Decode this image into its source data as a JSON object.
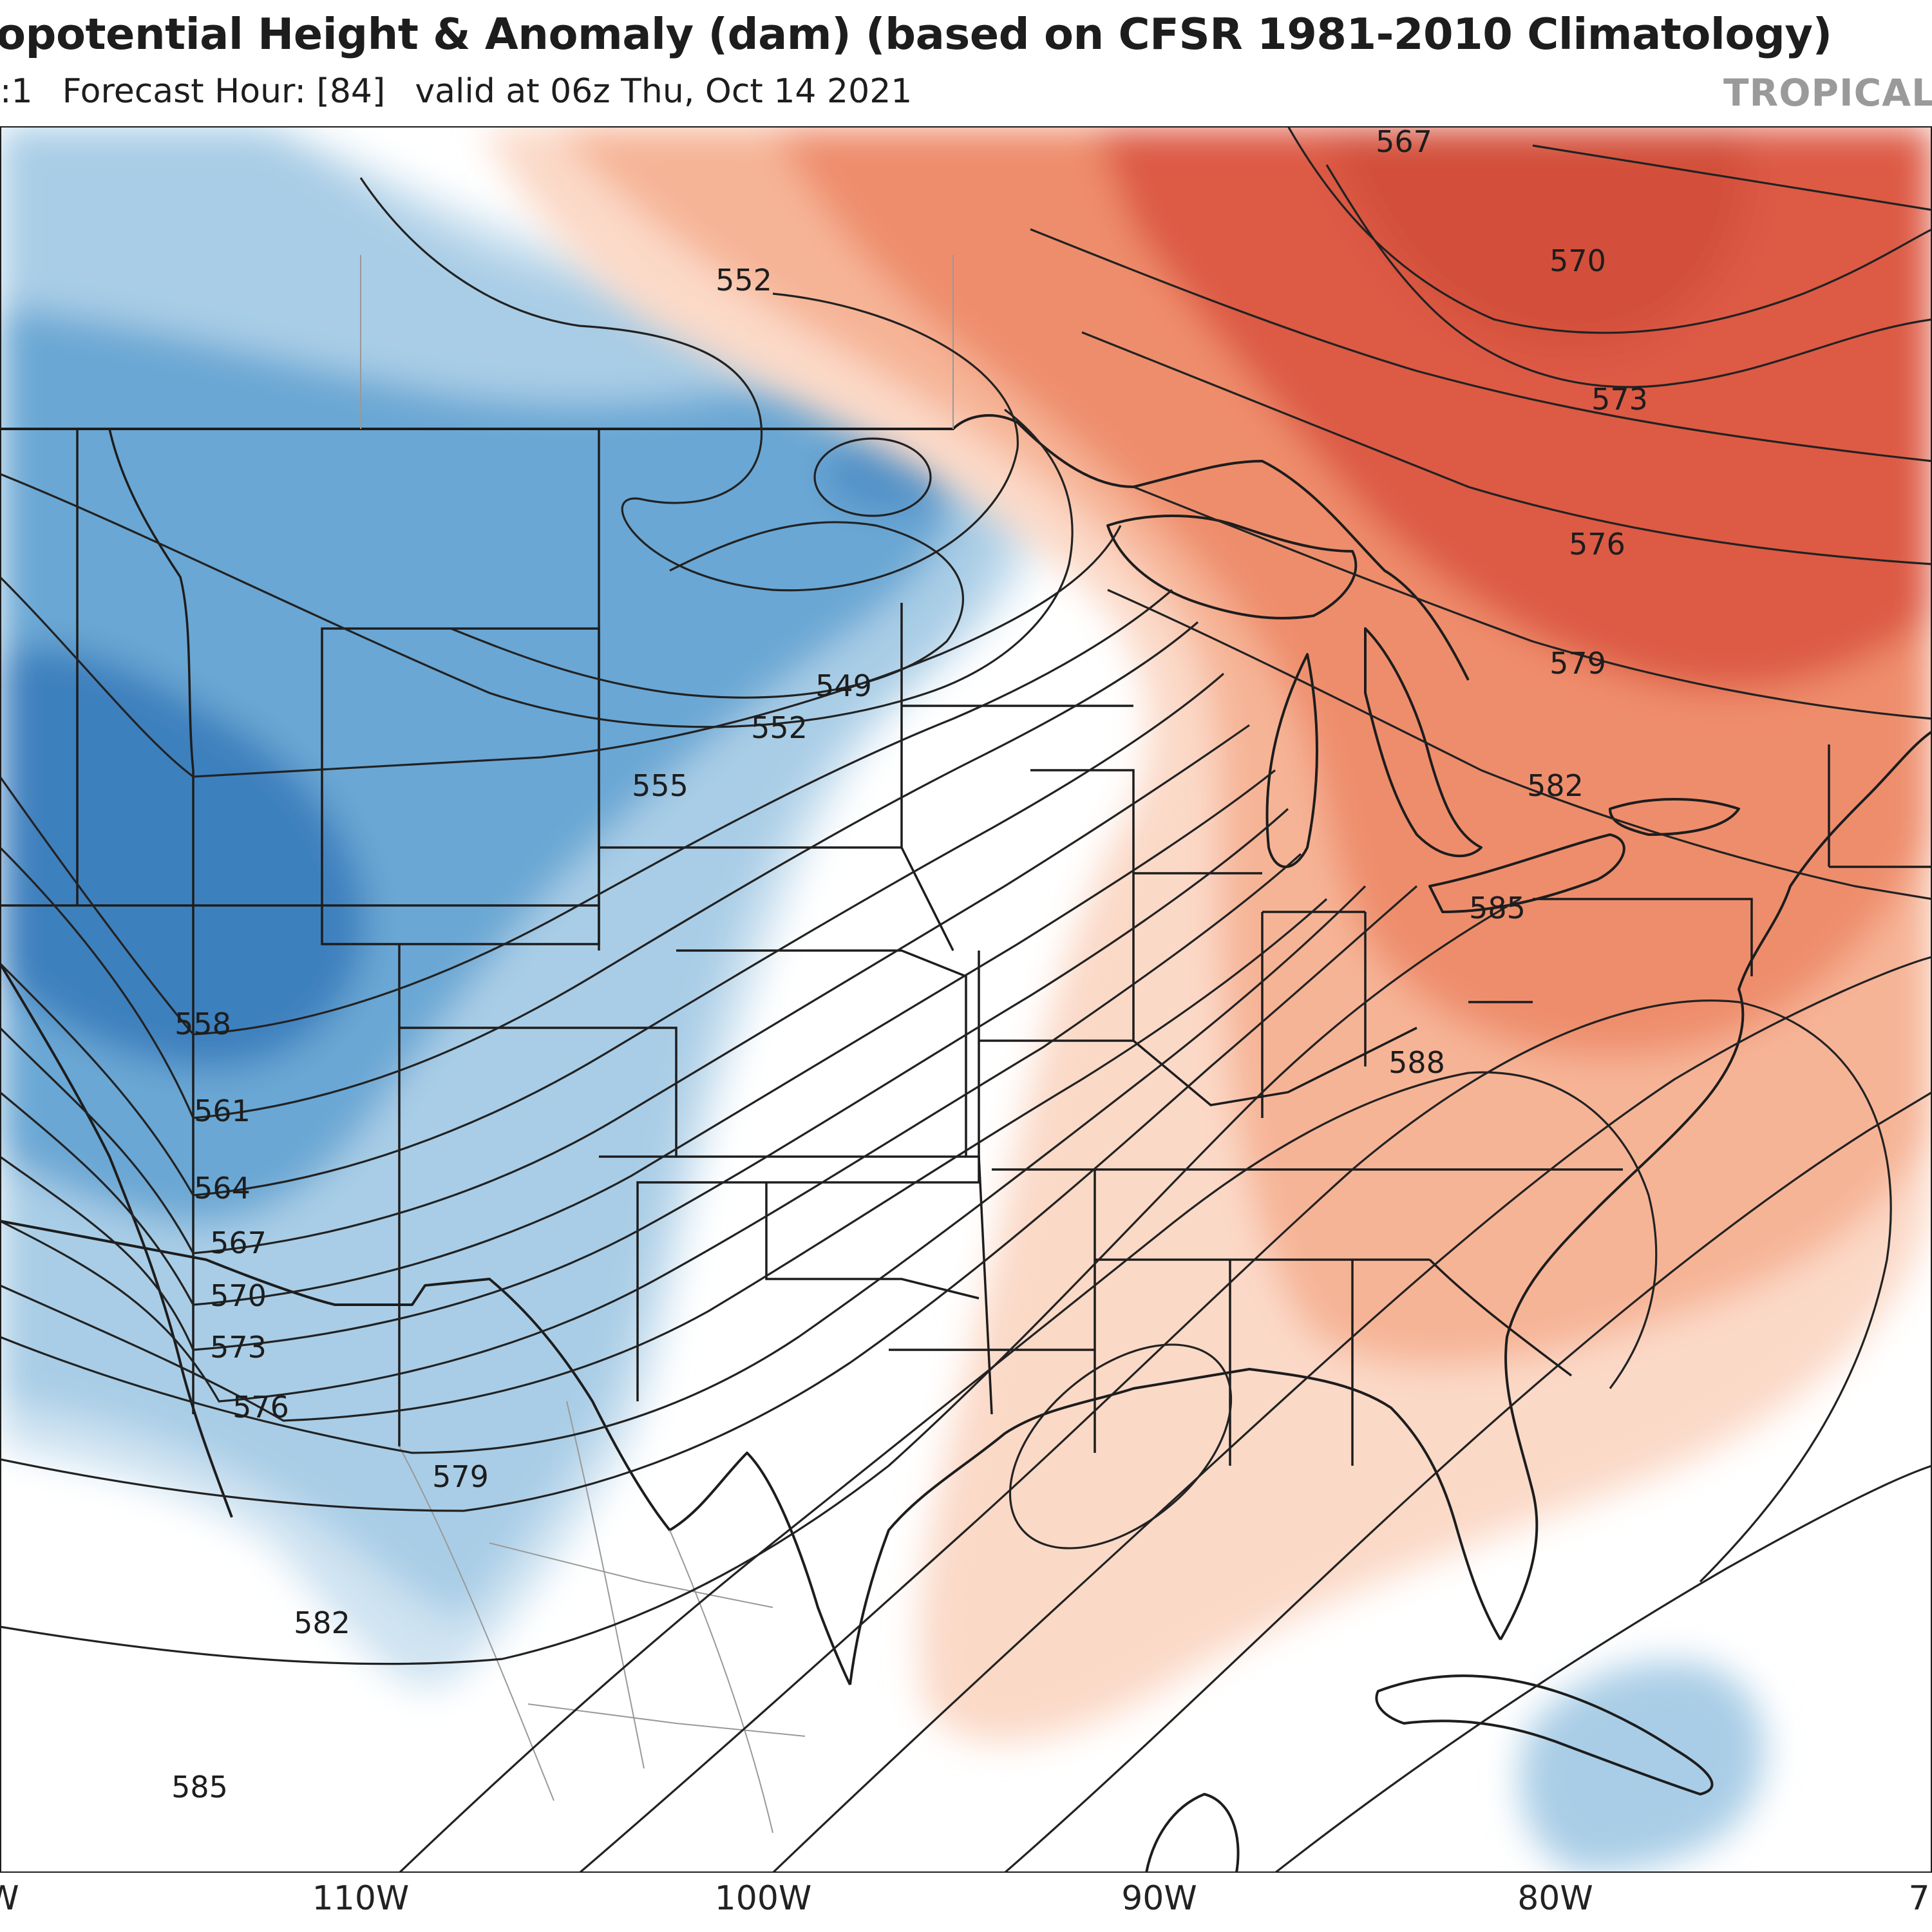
{
  "header": {
    "title": "opotential Height & Anomaly (dam) (based on CFSR 1981-2010 Climatology)",
    "init_fragment": ":1",
    "forecast_hour": "Forecast Hour: [84]",
    "valid_time": "valid at 06z Thu, Oct 14 2021",
    "brand": "TROPICAL"
  },
  "map": {
    "region": "Continental United States, Gulf of Mexico, Caribbean",
    "anomaly_colors": {
      "negative_strong": "#3d80be",
      "negative_moderate": "#6aa7d4",
      "negative_weak": "#a9cde6",
      "negative_faint": "#cfe3f1",
      "positive_faint": "#fbd9c7",
      "positive_weak": "#f6b496",
      "positive_moderate": "#ee8d6c",
      "positive_strong": "#dd5a45"
    },
    "height_contour_labels": [
      "549",
      "552",
      "552",
      "555",
      "558",
      "561",
      "564",
      "567",
      "570",
      "573",
      "576",
      "579",
      "582",
      "585",
      "588",
      "585",
      "582",
      "579",
      "576",
      "573",
      "570",
      "567"
    ],
    "longitude_labels": [
      "W",
      "110W",
      "100W",
      "90W",
      "80W",
      "7"
    ]
  }
}
